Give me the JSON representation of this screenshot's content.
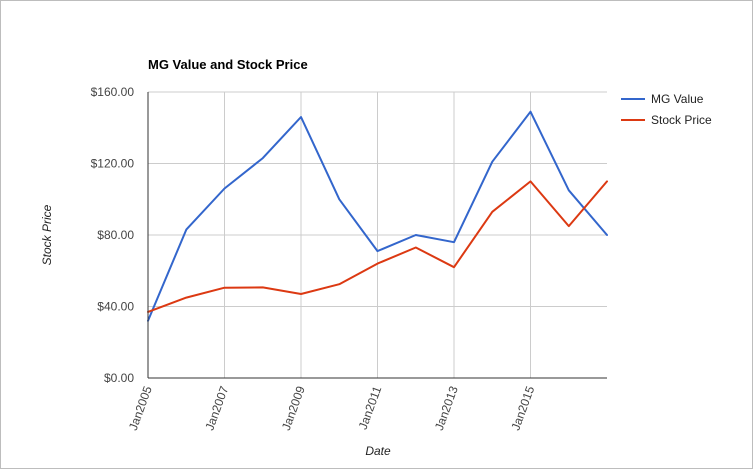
{
  "chart_data": {
    "type": "line",
    "title": "MG Value and Stock Price",
    "xlabel": "Date",
    "ylabel": "Stock Price",
    "x": [
      2005,
      2006,
      2007,
      2008,
      2009,
      2010,
      2011,
      2012,
      2013,
      2014,
      2015,
      2016,
      2017
    ],
    "x_ticks": [
      {
        "value": 2005,
        "label": "Jan2005"
      },
      {
        "value": 2007,
        "label": "Jan2007"
      },
      {
        "value": 2009,
        "label": "Jan2009"
      },
      {
        "value": 2011,
        "label": "Jan2011"
      },
      {
        "value": 2013,
        "label": "Jan2013"
      },
      {
        "value": 2015,
        "label": "Jan2015"
      }
    ],
    "xlim": [
      2005,
      2017
    ],
    "y_ticks": [
      {
        "value": 0,
        "label": "$0.00"
      },
      {
        "value": 40,
        "label": "$40.00"
      },
      {
        "value": 80,
        "label": "$80.00"
      },
      {
        "value": 120,
        "label": "$120.00"
      },
      {
        "value": 160,
        "label": "$160.00"
      }
    ],
    "ylim": [
      0,
      160
    ],
    "grid": true,
    "legend_position": "right",
    "series": [
      {
        "name": "MG Value",
        "color": "#3366cc",
        "values": [
          32,
          83,
          106,
          123,
          146,
          100,
          71,
          80,
          76,
          121,
          149,
          105,
          80
        ]
      },
      {
        "name": "Stock Price",
        "color": "#dc3912",
        "values": [
          37,
          45,
          50.5,
          50.7,
          47,
          52.5,
          64,
          73,
          62,
          93,
          110,
          85,
          110
        ]
      }
    ]
  }
}
